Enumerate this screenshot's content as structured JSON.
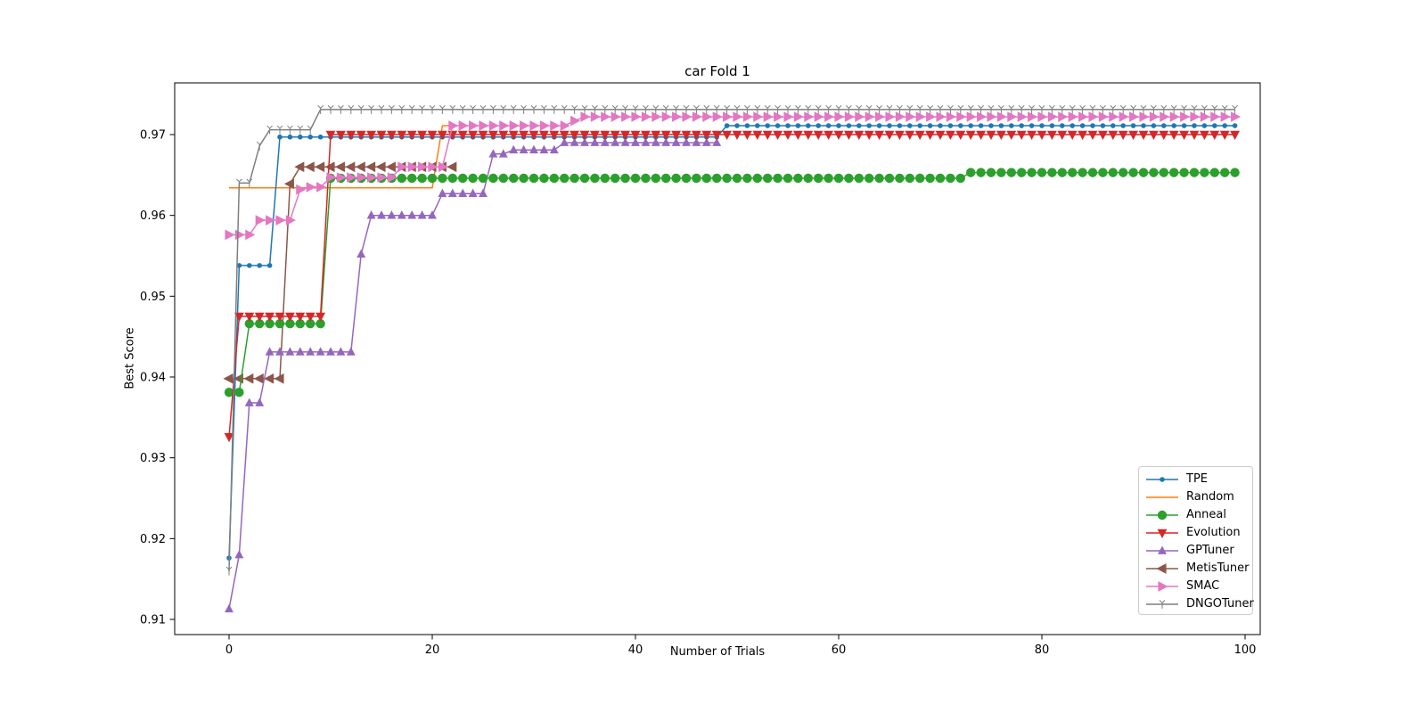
{
  "chart_data": {
    "type": "line",
    "title": "car Fold 1",
    "xlabel": "Number of Trials",
    "ylabel": "Best Score",
    "x_ticks": [
      0,
      20,
      40,
      60,
      80,
      100
    ],
    "x_tick_labels": [
      "0",
      "20",
      "40",
      "60",
      "80",
      "100"
    ],
    "y_ticks": [
      0.91,
      0.92,
      0.93,
      0.94,
      0.95,
      0.96,
      0.97
    ],
    "y_tick_labels": [
      "0.91",
      "0.92",
      "0.93",
      "0.94",
      "0.95",
      "0.96",
      "0.97"
    ],
    "xlim": [
      -5.4,
      101.5
    ],
    "ylim": [
      0.9081,
      0.9764
    ],
    "grid": false,
    "legend_position": "lower right",
    "series": [
      {
        "name": "TPE",
        "color": "#1f77b4",
        "marker": "circle-small",
        "trials": 100,
        "steps": [
          [
            0,
            0.9176
          ],
          [
            1,
            0.9538
          ],
          [
            5,
            0.9697
          ],
          [
            49,
            0.9711
          ]
        ]
      },
      {
        "name": "Random",
        "color": "#ff7f0e",
        "marker": "none",
        "trials": 23,
        "steps": [
          [
            0,
            0.9634
          ],
          [
            21,
            0.9711
          ]
        ]
      },
      {
        "name": "Anneal",
        "color": "#2ca02c",
        "marker": "circle-large",
        "trials": 100,
        "steps": [
          [
            0,
            0.9381
          ],
          [
            2,
            0.9466
          ],
          [
            10,
            0.9646
          ],
          [
            73,
            0.9653
          ]
        ]
      },
      {
        "name": "Evolution",
        "color": "#d62728",
        "marker": "triangle-down",
        "trials": 100,
        "steps": [
          [
            0,
            0.9326
          ],
          [
            1,
            0.9475
          ],
          [
            10,
            0.97
          ]
        ]
      },
      {
        "name": "GPTuner",
        "color": "#9467bd",
        "marker": "triangle-up",
        "trials": 49,
        "steps": [
          [
            0,
            0.9113
          ],
          [
            1,
            0.918
          ],
          [
            2,
            0.9368
          ],
          [
            4,
            0.9431
          ],
          [
            13,
            0.9552
          ],
          [
            14,
            0.96
          ],
          [
            21,
            0.9627
          ],
          [
            26,
            0.9676
          ],
          [
            28,
            0.9681
          ],
          [
            33,
            0.969
          ]
        ]
      },
      {
        "name": "MetisTuner",
        "color": "#8c564b",
        "marker": "triangle-left",
        "trials": 23,
        "steps": [
          [
            0,
            0.9398
          ],
          [
            6,
            0.9639
          ],
          [
            7,
            0.966
          ]
        ]
      },
      {
        "name": "SMAC",
        "color": "#e377c2",
        "marker": "triangle-right",
        "trials": 100,
        "steps": [
          [
            0,
            0.9576
          ],
          [
            3,
            0.9594
          ],
          [
            7,
            0.9632
          ],
          [
            8,
            0.9635
          ],
          [
            10,
            0.9647
          ],
          [
            17,
            0.966
          ],
          [
            22,
            0.9711
          ],
          [
            34,
            0.9717
          ],
          [
            35,
            0.9722
          ]
        ]
      },
      {
        "name": "DNGOTuner",
        "color": "#7f7f7f",
        "marker": "tick",
        "trials": 100,
        "steps": [
          [
            0,
            0.916
          ],
          [
            1,
            0.964
          ],
          [
            3,
            0.9686
          ],
          [
            4,
            0.9706
          ],
          [
            9,
            0.9731
          ]
        ]
      }
    ]
  }
}
